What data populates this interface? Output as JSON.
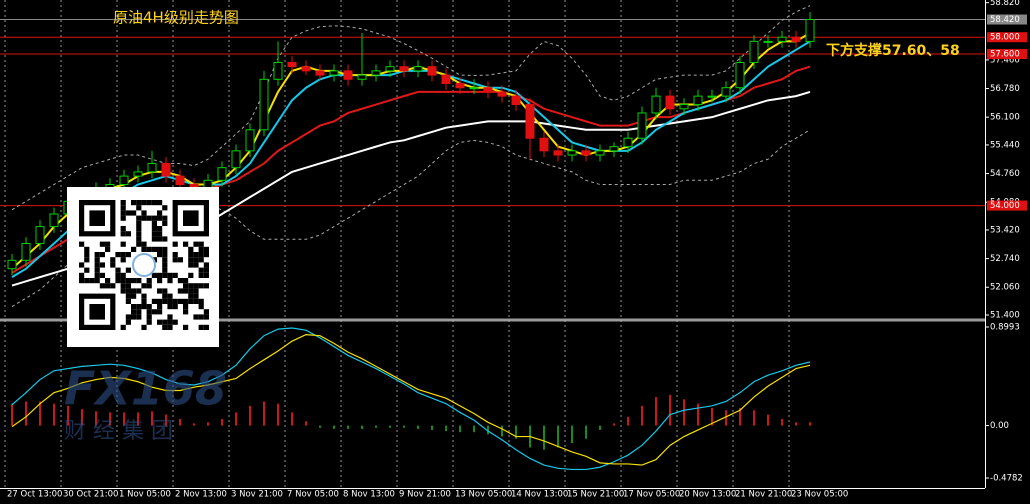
{
  "chart_data": [
    {
      "type": "candlestick",
      "annotations": [
        "原油4H级别走势图",
        "下方支撑57.60、58"
      ],
      "annotation_color": "#ffd21e",
      "watermark": [
        "FX168",
        "财 经 集 团"
      ],
      "categories": [
        "27 Oct 13:00",
        null,
        null,
        null,
        "30 Oct 21:00",
        null,
        null,
        null,
        "1 Nov 05:00",
        null,
        null,
        null,
        "2 Nov 13:00",
        null,
        null,
        null,
        "3 Nov 21:00",
        null,
        null,
        null,
        "7 Nov 05:00",
        null,
        null,
        null,
        "8 Nov 13:00",
        null,
        null,
        null,
        "9 Nov 21:00",
        null,
        null,
        null,
        "13 Nov 05:00",
        null,
        null,
        null,
        "14 Nov 13:00",
        null,
        null,
        null,
        "15 Nov 21:00",
        null,
        null,
        null,
        "17 Nov 05:00",
        null,
        null,
        null,
        "20 Nov 13:00",
        null,
        null,
        null,
        "21 Nov 21:00",
        null,
        null,
        null,
        "23 Nov 05:00",
        null
      ],
      "open": [
        52.5,
        52.7,
        53.1,
        53.5,
        53.8,
        54.1,
        54.2,
        54.4,
        54.5,
        54.7,
        54.8,
        55.0,
        54.7,
        54.5,
        54.4,
        54.6,
        54.9,
        55.3,
        55.8,
        57.0,
        57.4,
        57.3,
        57.2,
        57.1,
        57.2,
        57.0,
        57.1,
        57.2,
        57.3,
        57.2,
        57.3,
        57.1,
        56.9,
        56.8,
        56.8,
        56.7,
        56.6,
        56.4,
        55.6,
        55.3,
        55.2,
        55.3,
        55.2,
        55.3,
        55.4,
        55.6,
        56.2,
        56.6,
        56.3,
        56.4,
        56.6,
        56.6,
        56.8,
        57.4,
        57.9,
        57.9,
        58.0,
        57.9
      ],
      "high": [
        52.85,
        53.25,
        53.65,
        53.95,
        54.3,
        54.35,
        54.55,
        54.65,
        54.85,
        54.95,
        55.3,
        55.15,
        54.85,
        54.65,
        54.75,
        55.05,
        55.45,
        55.95,
        57.2,
        57.9,
        57.55,
        57.45,
        57.35,
        57.35,
        57.35,
        58.1,
        57.35,
        57.45,
        57.45,
        57.45,
        57.45,
        57.25,
        57.05,
        57.0,
        56.95,
        56.85,
        56.75,
        56.55,
        55.75,
        55.45,
        55.45,
        55.45,
        55.45,
        55.5,
        55.75,
        56.35,
        56.8,
        56.75,
        56.55,
        56.75,
        56.75,
        56.95,
        57.55,
        58.05,
        58.05,
        58.15,
        58.15,
        58.6
      ],
      "low": [
        52.35,
        52.55,
        52.95,
        53.35,
        53.65,
        53.95,
        54.05,
        54.25,
        54.35,
        54.55,
        54.65,
        54.55,
        54.35,
        54.25,
        54.25,
        54.45,
        54.75,
        55.15,
        55.65,
        56.85,
        57.15,
        57.1,
        57.0,
        56.95,
        56.85,
        56.85,
        56.95,
        57.05,
        57.05,
        57.05,
        56.95,
        56.75,
        56.65,
        56.65,
        56.55,
        56.45,
        56.25,
        55.1,
        55.15,
        55.05,
        55.05,
        55.05,
        55.05,
        55.15,
        55.25,
        55.45,
        56.05,
        56.15,
        56.15,
        56.25,
        56.45,
        56.45,
        56.65,
        57.25,
        57.75,
        57.75,
        57.75,
        57.75
      ],
      "close": [
        52.7,
        53.1,
        53.5,
        53.8,
        54.1,
        54.2,
        54.4,
        54.5,
        54.7,
        54.8,
        55.0,
        54.7,
        54.5,
        54.4,
        54.6,
        54.9,
        55.3,
        55.8,
        57.0,
        57.4,
        57.3,
        57.2,
        57.1,
        57.2,
        57.0,
        57.1,
        57.2,
        57.3,
        57.2,
        57.3,
        57.1,
        56.9,
        56.8,
        56.8,
        56.7,
        56.6,
        56.4,
        55.6,
        55.3,
        55.2,
        55.3,
        55.2,
        55.3,
        55.4,
        55.6,
        56.2,
        56.6,
        56.3,
        56.4,
        56.6,
        56.6,
        56.8,
        57.4,
        57.9,
        57.9,
        58.0,
        57.9,
        58.42
      ],
      "up_color": "#00d000",
      "down_color": "#e01010",
      "series": [
        {
          "color": "#aaaaaa",
          "dash": true,
          "values": [
            53.9,
            54.1,
            54.3,
            54.5,
            54.7,
            54.9,
            55.0,
            55.1,
            55.2,
            55.2,
            55.1,
            55.0,
            55.0,
            54.95,
            55.1,
            55.4,
            55.7,
            56.0,
            56.7,
            57.5,
            58.0,
            58.15,
            58.25,
            58.27,
            58.25,
            58.2,
            58.1,
            58.0,
            57.85,
            57.68,
            57.5,
            57.3,
            57.1,
            57.09,
            57.1,
            57.15,
            57.2,
            57.6,
            57.9,
            57.8,
            57.5,
            57.1,
            56.6,
            56.5,
            56.6,
            56.8,
            57.0,
            57.05,
            57.1,
            57.1,
            57.1,
            57.2,
            57.5,
            57.8,
            58.1,
            58.4,
            58.6,
            58.75
          ]
        },
        {
          "color": "#aaaaaa",
          "dash": true,
          "values": [
            51.6,
            51.8,
            52.0,
            52.3,
            52.6,
            52.8,
            53.0,
            53.2,
            53.4,
            53.5,
            53.6,
            53.7,
            53.8,
            53.9,
            54.0,
            53.9,
            53.7,
            53.4,
            53.2,
            53.2,
            53.2,
            53.2,
            53.3,
            53.5,
            53.7,
            53.9,
            54.1,
            54.3,
            54.5,
            54.7,
            55.0,
            55.3,
            55.5,
            55.55,
            55.5,
            55.4,
            55.2,
            55.1,
            55.0,
            54.9,
            54.8,
            54.6,
            54.5,
            54.5,
            54.5,
            54.5,
            54.5,
            54.5,
            54.6,
            54.6,
            54.6,
            54.7,
            54.8,
            55.0,
            55.1,
            55.4,
            55.6,
            55.8
          ]
        },
        {
          "color": "#ffffff",
          "dash": false,
          "values": [
            52.1,
            52.2,
            52.3,
            52.4,
            52.5,
            52.6,
            52.7,
            52.8,
            52.9,
            53.0,
            53.1,
            53.2,
            53.3,
            53.4,
            53.6,
            53.8,
            54.0,
            54.2,
            54.4,
            54.6,
            54.8,
            54.9,
            55.0,
            55.1,
            55.2,
            55.3,
            55.4,
            55.5,
            55.55,
            55.65,
            55.75,
            55.85,
            55.9,
            55.95,
            56.0,
            56.0,
            56.0,
            56.0,
            55.95,
            55.9,
            55.85,
            55.8,
            55.8,
            55.8,
            55.8,
            55.85,
            55.9,
            55.95,
            56.0,
            56.05,
            56.1,
            56.2,
            56.3,
            56.4,
            56.5,
            56.55,
            56.6,
            56.7
          ]
        },
        {
          "color": "#e01818",
          "dash": false,
          "values": [
            52.4,
            52.6,
            52.8,
            53.0,
            53.2,
            53.4,
            53.6,
            53.8,
            53.9,
            54.0,
            54.1,
            54.2,
            54.3,
            54.3,
            54.4,
            54.5,
            54.6,
            54.8,
            55.0,
            55.3,
            55.5,
            55.7,
            55.9,
            56.0,
            56.2,
            56.3,
            56.4,
            56.5,
            56.6,
            56.7,
            56.7,
            56.7,
            56.7,
            56.7,
            56.7,
            56.7,
            56.6,
            56.5,
            56.3,
            56.2,
            56.1,
            56.0,
            55.9,
            55.9,
            55.9,
            56.0,
            56.1,
            56.1,
            56.2,
            56.3,
            56.4,
            56.5,
            56.6,
            56.8,
            56.9,
            57.0,
            57.2,
            57.3
          ]
        },
        {
          "color": "#18c8e8",
          "dash": false,
          "values": [
            52.3,
            52.5,
            52.8,
            53.1,
            53.4,
            53.7,
            53.9,
            54.1,
            54.3,
            54.5,
            54.6,
            54.7,
            54.6,
            54.5,
            54.5,
            54.5,
            54.7,
            55.0,
            55.5,
            56.0,
            56.5,
            56.8,
            57.0,
            57.1,
            57.1,
            57.1,
            57.1,
            57.1,
            57.2,
            57.2,
            57.2,
            57.1,
            57.0,
            56.9,
            56.8,
            56.8,
            56.7,
            56.4,
            56.1,
            55.8,
            55.5,
            55.4,
            55.3,
            55.3,
            55.3,
            55.5,
            55.8,
            56.0,
            56.2,
            56.3,
            56.4,
            56.5,
            56.7,
            57.0,
            57.3,
            57.5,
            57.7,
            57.9
          ]
        },
        {
          "color": "#f5e000",
          "dash": false,
          "values": [
            52.5,
            52.8,
            53.1,
            53.5,
            53.8,
            54.0,
            54.2,
            54.4,
            54.5,
            54.7,
            54.8,
            54.8,
            54.7,
            54.5,
            54.5,
            54.6,
            54.9,
            55.3,
            56.0,
            56.7,
            57.2,
            57.3,
            57.2,
            57.2,
            57.1,
            57.1,
            57.1,
            57.2,
            57.2,
            57.3,
            57.2,
            57.1,
            56.9,
            56.8,
            56.8,
            56.7,
            56.6,
            56.2,
            55.8,
            55.4,
            55.3,
            55.2,
            55.3,
            55.3,
            55.4,
            55.7,
            56.1,
            56.4,
            56.4,
            56.4,
            56.5,
            56.7,
            57.0,
            57.4,
            57.7,
            57.9,
            57.9,
            58.1
          ]
        }
      ],
      "hlines": [
        {
          "value": 58.0,
          "label": "58.000",
          "color": "#e01010"
        },
        {
          "value": 57.6,
          "label": "57.600",
          "color": "#e01010"
        },
        {
          "value": 54.0,
          "label": "54.000",
          "color": "#e01010"
        }
      ],
      "last_price": {
        "value": 58.42,
        "label": "58.420",
        "color": "#888888"
      },
      "ylim": [
        51.4,
        58.86
      ],
      "yticks": [
        {
          "value": 51.4,
          "label": "51.400"
        },
        {
          "value": 52.06,
          "label": "52.060"
        },
        {
          "value": 52.74,
          "label": "52.740"
        },
        {
          "value": 53.42,
          "label": "53.420"
        },
        {
          "value": 54.08,
          "label": "54.080"
        },
        {
          "value": 54.76,
          "label": "54.760"
        },
        {
          "value": 55.44,
          "label": "55.440"
        },
        {
          "value": 56.1,
          "label": "56.100"
        },
        {
          "value": 56.78,
          "label": "56.780"
        },
        {
          "value": 57.46,
          "label": "57.460"
        },
        {
          "value": 58.82,
          "label": "58.820"
        }
      ],
      "grid": true
    },
    {
      "type": "macd",
      "histogram": [
        0.2,
        0.22,
        0.22,
        0.2,
        0.18,
        0.15,
        0.13,
        0.12,
        0.12,
        0.12,
        0.13,
        0.1,
        0.06,
        0.02,
        0.03,
        0.06,
        0.12,
        0.18,
        0.22,
        0.2,
        0.12,
        0.04,
        -0.02,
        -0.03,
        -0.03,
        -0.03,
        -0.02,
        -0.02,
        -0.02,
        -0.03,
        -0.04,
        -0.05,
        -0.06,
        -0.06,
        -0.08,
        -0.1,
        -0.12,
        -0.2,
        -0.22,
        -0.2,
        -0.16,
        -0.12,
        -0.04,
        0.02,
        0.08,
        0.18,
        0.26,
        0.28,
        0.24,
        0.2,
        0.16,
        0.14,
        0.16,
        0.14,
        0.1,
        0.06,
        0.03,
        0.03
      ],
      "up_color": "#c81818",
      "down_color": "#1a8a1a",
      "series": [
        {
          "color": "#18c8e8",
          "values": [
            0.19,
            0.3,
            0.42,
            0.5,
            0.52,
            0.54,
            0.55,
            0.56,
            0.55,
            0.52,
            0.48,
            0.42,
            0.38,
            0.37,
            0.4,
            0.46,
            0.55,
            0.7,
            0.82,
            0.88,
            0.89,
            0.87,
            0.8,
            0.72,
            0.64,
            0.58,
            0.52,
            0.45,
            0.38,
            0.3,
            0.25,
            0.2,
            0.12,
            0.05,
            -0.05,
            -0.13,
            -0.22,
            -0.3,
            -0.36,
            -0.39,
            -0.4,
            -0.4,
            -0.38,
            -0.33,
            -0.27,
            -0.18,
            -0.05,
            0.1,
            0.14,
            0.16,
            0.18,
            0.22,
            0.3,
            0.4,
            0.46,
            0.5,
            0.55,
            0.58
          ]
        },
        {
          "color": "#f5e000",
          "values": [
            -0.01,
            0.08,
            0.2,
            0.3,
            0.34,
            0.39,
            0.42,
            0.44,
            0.43,
            0.4,
            0.35,
            0.32,
            0.32,
            0.35,
            0.37,
            0.4,
            0.43,
            0.52,
            0.6,
            0.68,
            0.77,
            0.83,
            0.82,
            0.75,
            0.67,
            0.61,
            0.54,
            0.47,
            0.4,
            0.33,
            0.29,
            0.25,
            0.18,
            0.11,
            0.03,
            -0.03,
            -0.1,
            -0.1,
            -0.14,
            -0.19,
            -0.24,
            -0.28,
            -0.34,
            -0.35,
            -0.35,
            -0.36,
            -0.31,
            -0.18,
            -0.1,
            -0.04,
            0.02,
            0.08,
            0.14,
            0.26,
            0.36,
            0.44,
            0.52,
            0.55
          ]
        }
      ],
      "ylim": [
        -0.4782,
        0.8993
      ],
      "yticks": [
        0.8993,
        {
          "value": 0,
          "label": "0.00"
        },
        -0.4782
      ]
    }
  ]
}
